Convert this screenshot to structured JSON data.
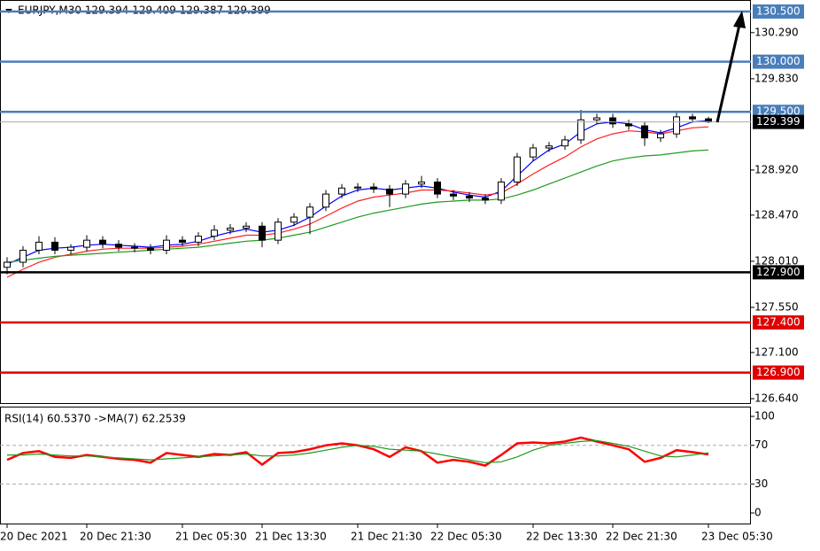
{
  "chart_data": [
    {
      "type": "candlestick",
      "title": "EURJPY,M30  129.394 129.409 129.387 129.399",
      "categories": [
        "20 Dec 2021",
        null,
        null,
        null,
        null,
        "20 Dec 21:30",
        null,
        null,
        null,
        null,
        null,
        "21 Dec 05:30",
        null,
        null,
        null,
        null,
        "21 Dec 13:30",
        null,
        null,
        null,
        null,
        null,
        "21 Dec 21:30",
        null,
        null,
        null,
        null,
        "22 Dec 05:30",
        null,
        null,
        null,
        null,
        null,
        "22 Dec 13:30",
        null,
        null,
        null,
        null,
        "22 Dec 21:30",
        null,
        null,
        null,
        null,
        null,
        "23 Dec 05:30"
      ],
      "open": [
        127.95,
        128.0,
        128.12,
        128.2,
        128.12,
        128.15,
        128.22,
        128.18,
        128.15,
        128.14,
        128.12,
        128.22,
        128.2,
        128.26,
        128.32,
        128.34,
        128.36,
        128.22,
        128.4,
        128.45,
        128.55,
        128.68,
        128.74,
        128.75,
        128.73,
        128.68,
        128.78,
        128.8,
        128.68,
        128.66,
        128.64,
        128.62,
        128.8,
        129.05,
        129.14,
        129.16,
        129.22,
        129.42,
        129.44,
        129.38,
        129.36,
        129.24,
        129.28,
        129.45,
        129.43
      ],
      "high": [
        128.05,
        128.16,
        128.26,
        128.25,
        128.18,
        128.27,
        128.26,
        128.22,
        128.19,
        128.18,
        128.27,
        128.26,
        128.3,
        128.37,
        128.38,
        128.4,
        128.4,
        128.44,
        128.49,
        128.59,
        128.72,
        128.78,
        128.79,
        128.79,
        128.77,
        128.82,
        128.86,
        128.84,
        128.72,
        128.7,
        128.68,
        128.84,
        129.09,
        129.18,
        129.2,
        129.26,
        129.52,
        129.48,
        129.48,
        129.42,
        129.4,
        129.32,
        129.49,
        129.48,
        129.45
      ],
      "low": [
        127.88,
        127.95,
        128.08,
        128.08,
        128.08,
        128.11,
        128.14,
        128.11,
        128.1,
        128.08,
        128.08,
        128.16,
        128.16,
        128.22,
        128.28,
        128.3,
        128.15,
        128.18,
        128.36,
        128.28,
        128.51,
        128.64,
        128.7,
        128.69,
        128.55,
        128.64,
        128.74,
        128.64,
        128.62,
        128.6,
        128.58,
        128.58,
        128.76,
        129.01,
        129.1,
        129.12,
        129.18,
        129.38,
        129.34,
        129.32,
        129.16,
        129.2,
        129.24,
        129.39,
        129.387
      ],
      "close": [
        128.0,
        128.12,
        128.2,
        128.12,
        128.15,
        128.22,
        128.18,
        128.15,
        128.14,
        128.12,
        128.22,
        128.2,
        128.26,
        128.32,
        128.34,
        128.36,
        128.22,
        128.4,
        128.45,
        128.55,
        128.68,
        128.74,
        128.75,
        128.73,
        128.68,
        128.78,
        128.8,
        128.68,
        128.66,
        128.64,
        128.62,
        128.8,
        129.05,
        129.14,
        129.16,
        129.22,
        129.42,
        129.44,
        129.38,
        129.36,
        129.24,
        129.28,
        129.45,
        129.43,
        129.399
      ],
      "series": [
        {
          "color": "#0000ff",
          "values": [
            127.98,
            128.05,
            128.12,
            128.14,
            128.15,
            128.17,
            128.18,
            128.17,
            128.16,
            128.15,
            128.17,
            128.18,
            128.21,
            128.26,
            128.3,
            128.33,
            128.3,
            128.32,
            128.37,
            128.45,
            128.56,
            128.66,
            128.72,
            128.74,
            128.72,
            128.74,
            128.76,
            128.74,
            128.7,
            128.67,
            128.65,
            128.71,
            128.86,
            129.01,
            129.12,
            129.18,
            129.3,
            129.38,
            129.4,
            129.38,
            129.32,
            129.29,
            129.34,
            129.4,
            129.41
          ]
        },
        {
          "color": "#ff2020",
          "values": [
            127.85,
            127.93,
            128.0,
            128.05,
            128.08,
            128.11,
            128.13,
            128.14,
            128.14,
            128.14,
            128.15,
            128.16,
            128.18,
            128.21,
            128.24,
            128.27,
            128.27,
            128.29,
            128.33,
            128.38,
            128.46,
            128.54,
            128.61,
            128.65,
            128.67,
            128.69,
            128.72,
            128.72,
            128.71,
            128.69,
            128.67,
            128.69,
            128.78,
            128.88,
            128.97,
            129.05,
            129.15,
            129.23,
            129.28,
            129.31,
            129.3,
            129.28,
            129.31,
            129.34,
            129.35
          ]
        },
        {
          "color": "#1f9a1f",
          "values": [
            128.0,
            128.02,
            128.04,
            128.06,
            128.07,
            128.08,
            128.09,
            128.1,
            128.11,
            128.12,
            128.13,
            128.14,
            128.15,
            128.17,
            128.19,
            128.21,
            128.22,
            128.24,
            128.27,
            128.3,
            128.35,
            128.4,
            128.45,
            128.49,
            128.52,
            128.55,
            128.58,
            128.6,
            128.61,
            128.62,
            128.62,
            128.63,
            128.67,
            128.72,
            128.78,
            128.84,
            128.9,
            128.96,
            129.01,
            129.04,
            129.06,
            129.07,
            129.09,
            129.11,
            129.12
          ]
        }
      ],
      "ylim": [
        126.596,
        130.615
      ],
      "yticks": [
        {
          "value": 130.29,
          "label": "130.290"
        },
        {
          "value": 129.83,
          "label": "129.830"
        },
        {
          "value": 128.92,
          "label": "128.920"
        },
        {
          "value": 128.47,
          "label": "128.470"
        },
        {
          "value": 128.01,
          "label": "128.010"
        },
        {
          "value": 127.55,
          "label": "127.550"
        },
        {
          "value": 127.1,
          "label": "127.100"
        },
        {
          "value": 126.64,
          "label": "126.640"
        }
      ],
      "levels": [
        {
          "value": 130.5,
          "label": "130.500",
          "color": "#4a7ebb"
        },
        {
          "value": 130,
          "label": "130.000",
          "color": "#4a7ebb"
        },
        {
          "value": 129.5,
          "label": "129.500",
          "color": "#4a7ebb"
        },
        {
          "value": 129.399,
          "label": "129.399",
          "color": "#000000"
        },
        {
          "value": 127.9,
          "label": "127.900",
          "color": "#000000"
        },
        {
          "value": 127.4,
          "label": "127.400",
          "color": "#e00000"
        },
        {
          "value": 126.9,
          "label": "126.900",
          "color": "#e00000"
        }
      ]
    },
    {
      "type": "line",
      "title": "RSI(14) 60.5370  ->MA(7) 62.2539",
      "series": [
        {
          "color": "#ff0000",
          "values": [
            55,
            62,
            64,
            58,
            57,
            60,
            58,
            56,
            55,
            52,
            62,
            60,
            58,
            61,
            60,
            63,
            50,
            62,
            63,
            66,
            70,
            72,
            70,
            66,
            58,
            68,
            64,
            52,
            55,
            53,
            49,
            60,
            72,
            73,
            72,
            74,
            78,
            74,
            70,
            66,
            53,
            57,
            65,
            63,
            60.537
          ]
        },
        {
          "color": "#1f9a1f",
          "values": [
            60,
            60,
            61,
            60,
            59,
            59,
            58,
            57,
            56,
            55,
            56,
            57,
            58,
            59,
            60,
            61,
            59,
            59,
            60,
            62,
            65,
            68,
            70,
            69,
            66,
            65,
            64,
            61,
            58,
            55,
            52,
            53,
            58,
            65,
            70,
            72,
            74,
            75,
            72,
            69,
            64,
            59,
            58,
            60,
            62.2539
          ]
        }
      ],
      "ylim": [
        -11.9,
        109.2
      ],
      "yticks": [
        100,
        70,
        30,
        0
      ],
      "levels": [
        70,
        30
      ]
    }
  ]
}
